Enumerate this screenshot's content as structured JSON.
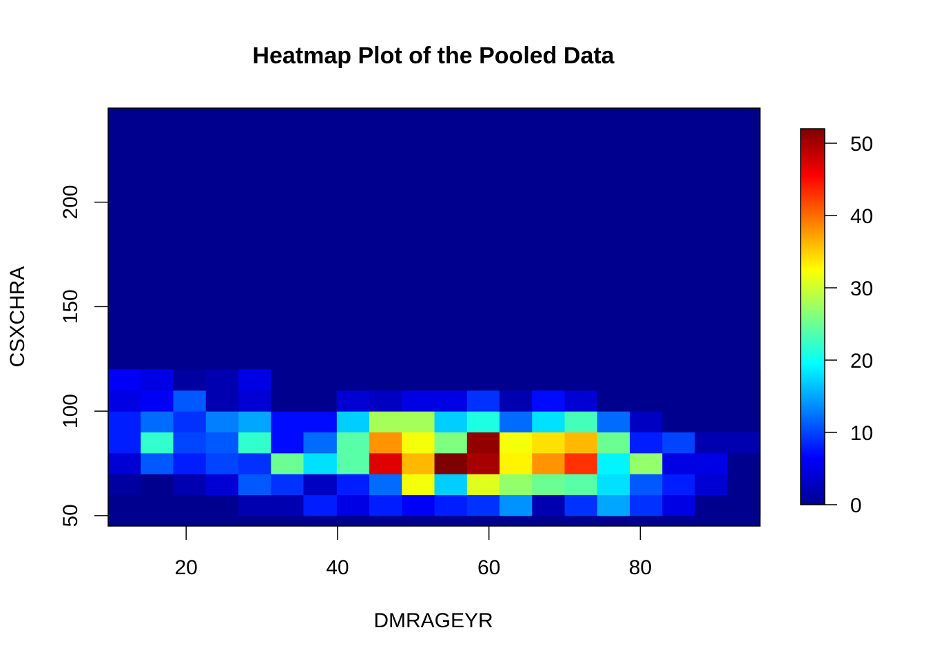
{
  "chart_data": {
    "type": "heatmap",
    "title": "Heatmap Plot of the Pooled Data",
    "xlabel": "DMRAGEYR",
    "ylabel": "CSXCHRA",
    "xlim": [
      9.7,
      95.8
    ],
    "ylim": [
      45,
      245
    ],
    "x_ticks": [
      20,
      40,
      60,
      80
    ],
    "y_ticks": [
      50,
      100,
      150,
      200
    ],
    "x_tick_labels": [
      "20",
      "40",
      "60",
      "80"
    ],
    "y_tick_labels": [
      "50",
      "100",
      "150",
      "200"
    ],
    "x_bins": [
      9.7,
      14.0,
      18.3,
      22.6,
      26.9,
      31.2,
      35.5,
      39.9,
      44.2,
      48.5,
      52.8,
      57.1,
      61.4,
      65.7,
      70.0,
      74.3,
      78.6,
      82.9,
      87.2,
      91.5,
      95.8
    ],
    "y_bins": [
      50,
      60,
      70,
      80,
      90,
      100,
      110,
      120
    ],
    "background_value": 0,
    "colorbar": {
      "min": 0,
      "max": 52,
      "ticks": [
        0,
        10,
        20,
        30,
        40,
        50
      ],
      "tick_labels": [
        "0",
        "10",
        "20",
        "30",
        "40",
        "50"
      ],
      "palette": [
        "#00008F",
        "#0000FF",
        "#007FFF",
        "#00FFFF",
        "#7FFF7F",
        "#FFFF00",
        "#FF7F00",
        "#FF0000",
        "#7F0000"
      ]
    },
    "values": [
      [
        0,
        0,
        0,
        0,
        2,
        2,
        8,
        5,
        8,
        6,
        8,
        9,
        14,
        2,
        9,
        15,
        9,
        5,
        0,
        0
      ],
      [
        1,
        0,
        2,
        4,
        11,
        9,
        3,
        8,
        12,
        32,
        17,
        31,
        27,
        25,
        24,
        18,
        11,
        8,
        4,
        0
      ],
      [
        4,
        11,
        8,
        10,
        9,
        25,
        18,
        24,
        47,
        36,
        52,
        50,
        33,
        38,
        43,
        19,
        27,
        5,
        5,
        0
      ],
      [
        8,
        22,
        10,
        11,
        22,
        7,
        12,
        24,
        38,
        32,
        26,
        51,
        32,
        34,
        36,
        25,
        8,
        10,
        2,
        2
      ],
      [
        8,
        12,
        9,
        13,
        15,
        7,
        7,
        17,
        28,
        28,
        17,
        21,
        12,
        18,
        23,
        12,
        3,
        0,
        0,
        0
      ],
      [
        5,
        6,
        11,
        2,
        4,
        0,
        0,
        4,
        3,
        5,
        5,
        9,
        2,
        7,
        4,
        0,
        0,
        0,
        0,
        0
      ],
      [
        6,
        5,
        1,
        2,
        5,
        0,
        0,
        0,
        0,
        0,
        0,
        0,
        0,
        0,
        0,
        0,
        0,
        0,
        0,
        0
      ],
      [
        0,
        2,
        0,
        2,
        0,
        0,
        0,
        0,
        0,
        0,
        0,
        0,
        0,
        0,
        0,
        0,
        0,
        0,
        0,
        0
      ]
    ]
  }
}
